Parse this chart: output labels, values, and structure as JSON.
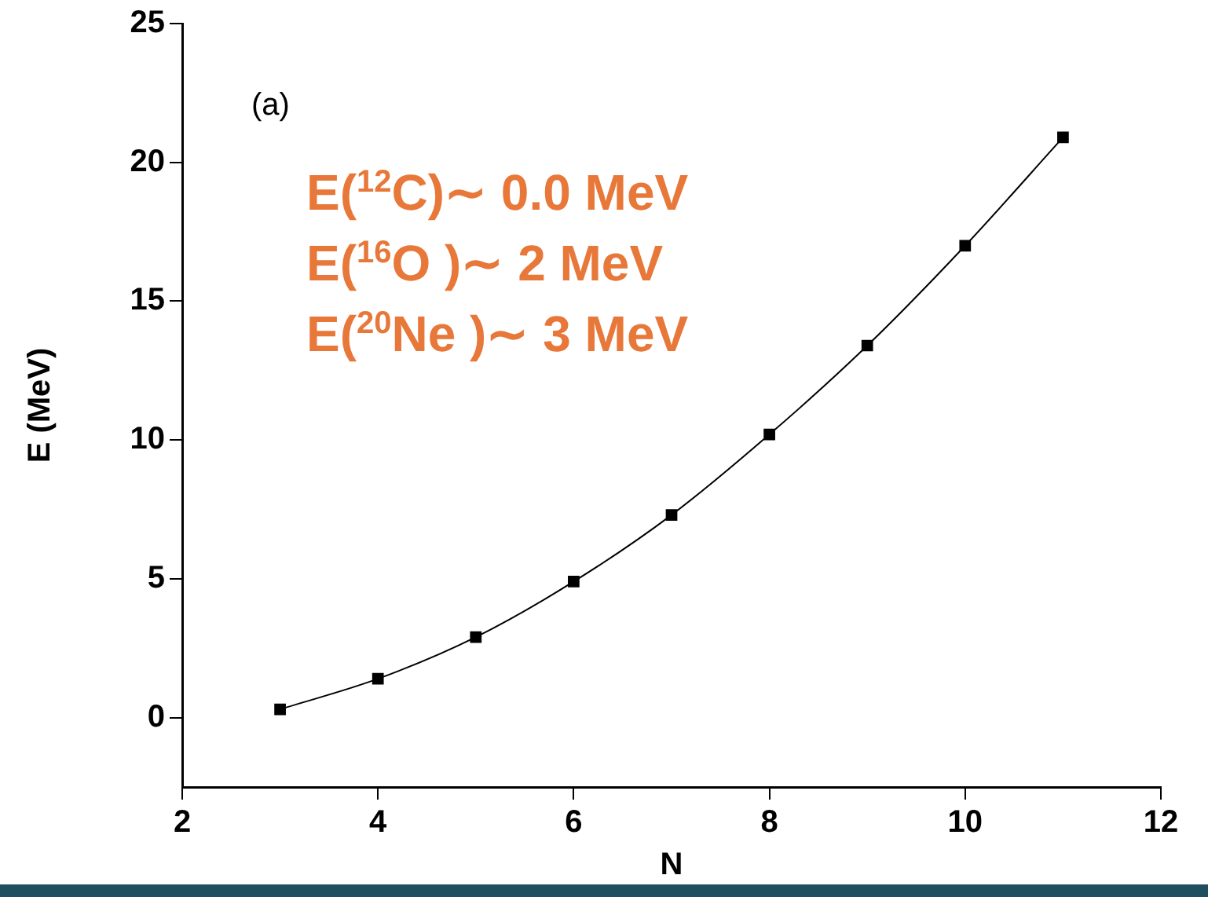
{
  "chart_data": {
    "type": "line",
    "xlabel": "N",
    "ylabel": "E (MeV)",
    "annotations": [
      "(a)",
      "E($^{12}$C)∼ 0.0 MeV",
      "E($^{16}$O )∼ 2 MeV",
      "E($^{20}$Ne )∼ 3 MeV"
    ],
    "x": [
      3,
      4,
      5,
      6,
      7,
      8,
      9,
      10,
      11
    ],
    "series": [
      {
        "color": "#000000",
        "values": [
          0.3,
          1.4,
          2.9,
          4.9,
          7.3,
          10.2,
          13.4,
          17.0,
          20.9
        ]
      }
    ],
    "marker": "square",
    "line_style": "solid",
    "xlim": [
      2,
      12
    ],
    "ylim": [
      -2.5,
      25
    ],
    "xticks": [
      2,
      4,
      6,
      8,
      10,
      12
    ],
    "yticks": [
      0,
      5,
      10,
      15,
      20,
      25
    ]
  }
}
